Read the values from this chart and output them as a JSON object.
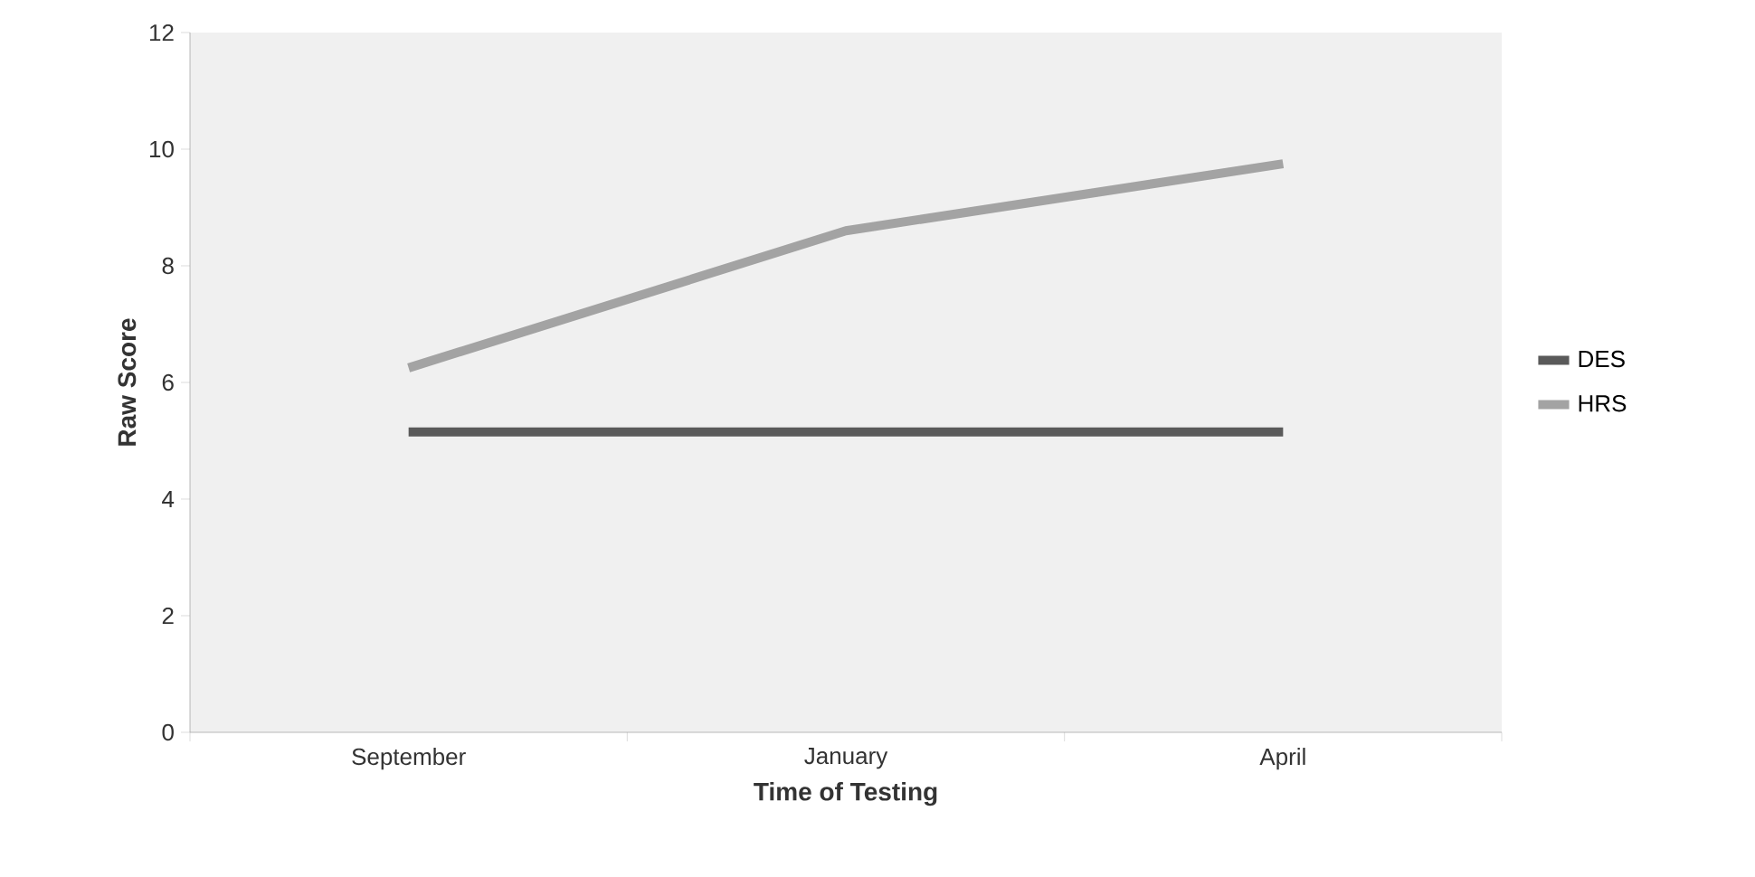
{
  "chart_data": {
    "type": "line",
    "xlabel": "Time of Testing",
    "ylabel": "Raw Score",
    "categories": [
      "September",
      "January",
      "April"
    ],
    "series": [
      {
        "name": "DES",
        "color": "#5a5a5a",
        "values": [
          5.15,
          5.15,
          5.15
        ]
      },
      {
        "name": "HRS",
        "color": "#a3a3a3",
        "values": [
          6.25,
          8.6,
          9.75
        ]
      }
    ],
    "ylim": [
      0,
      12
    ],
    "yticks": [
      0,
      2,
      4,
      6,
      8,
      10,
      12
    ],
    "legend": "right",
    "grid": false,
    "marker": "none",
    "line_style": "solid"
  }
}
